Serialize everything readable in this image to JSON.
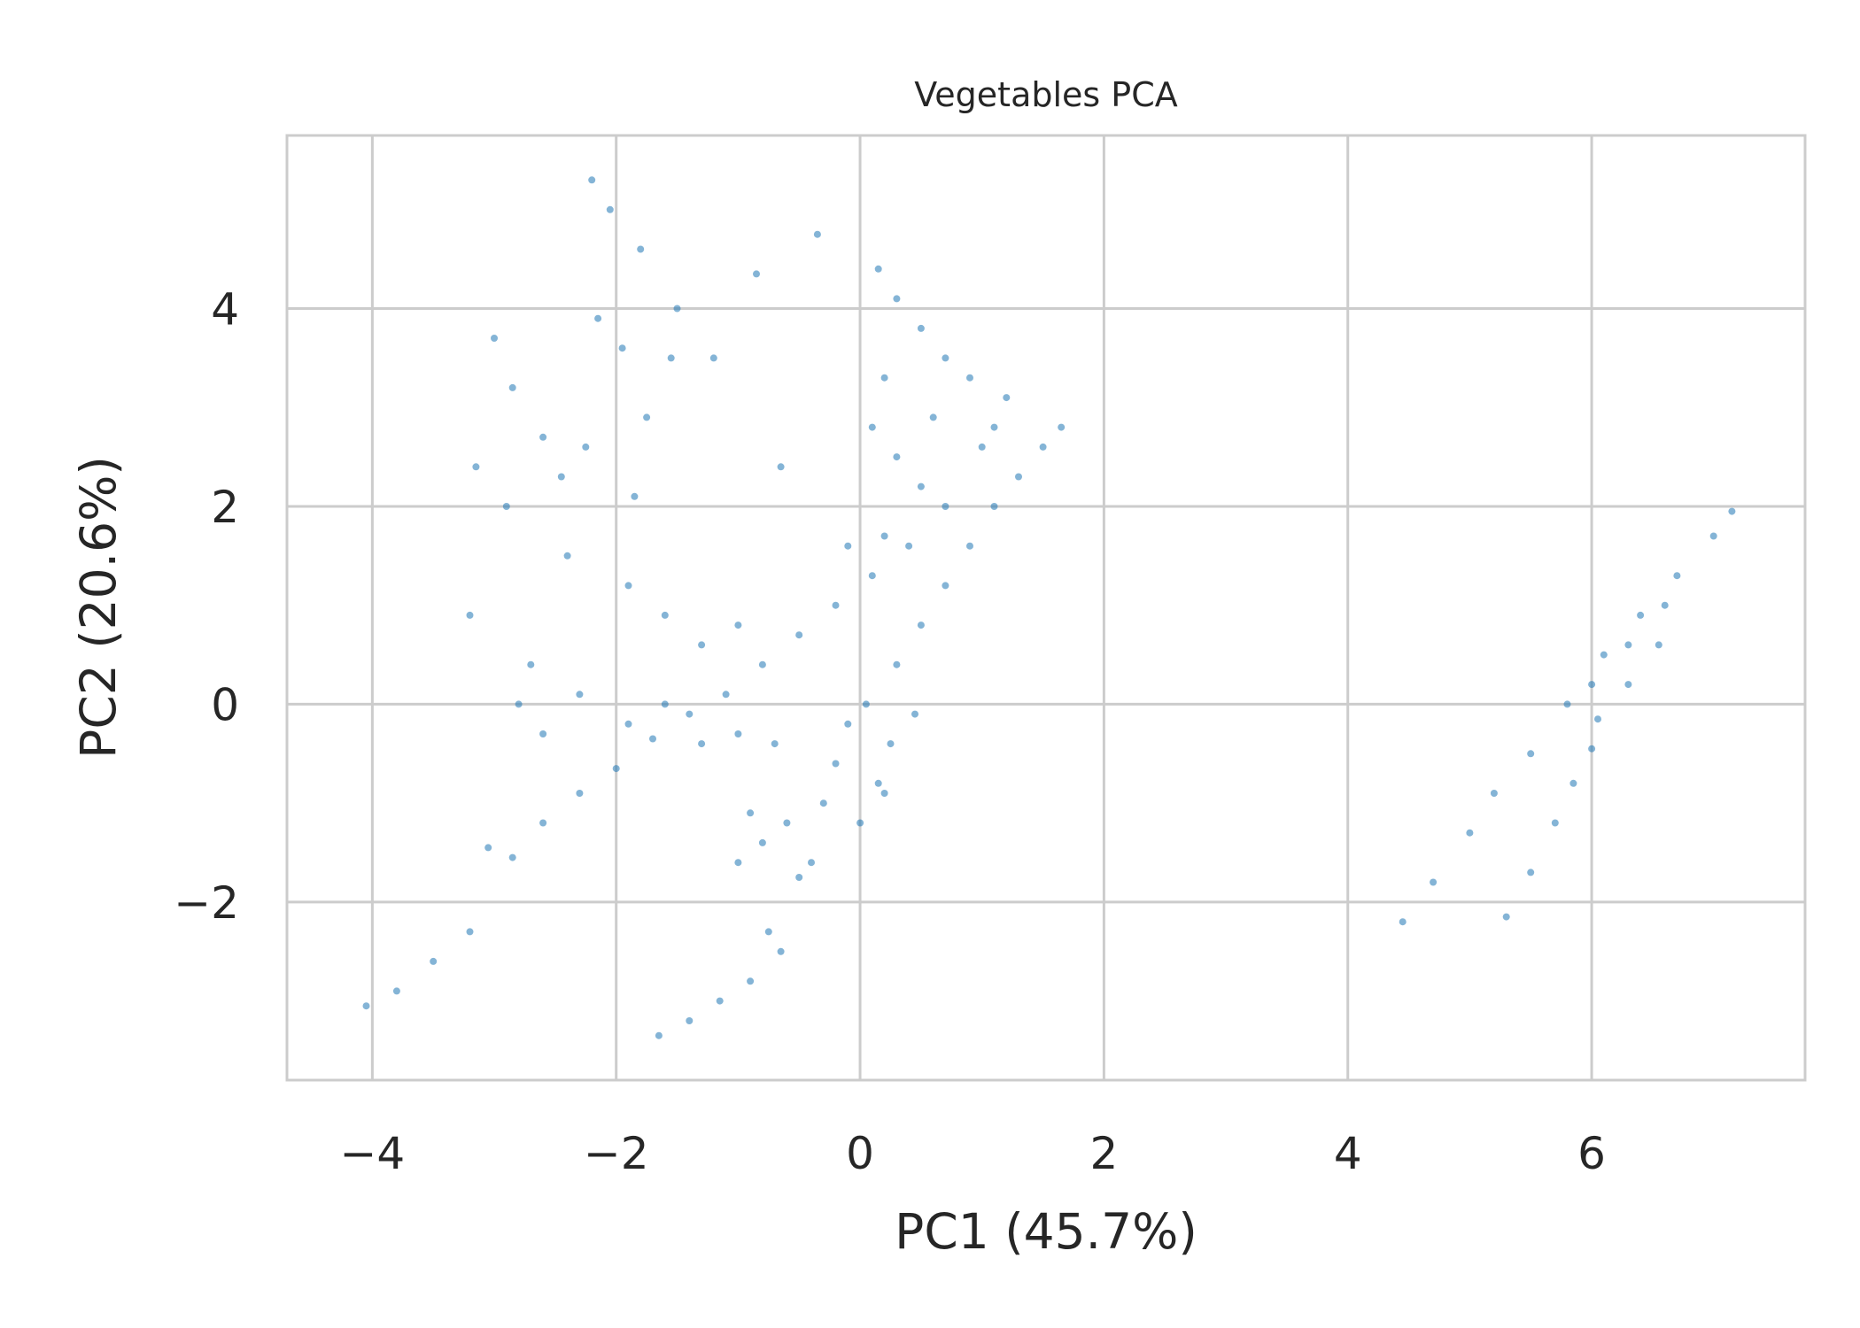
{
  "chart_data": {
    "type": "scatter",
    "title": "Vegetables PCA",
    "xlabel": "PC1 (45.7%)",
    "ylabel": "PC2 (20.6%)",
    "xlim": [
      -4.7,
      7.75
    ],
    "ylim": [
      -3.8,
      5.75
    ],
    "xticks": [
      -4,
      -2,
      0,
      2,
      4,
      6
    ],
    "yticks": [
      -2,
      0,
      2,
      4
    ],
    "xtick_labels": [
      "−4",
      "−2",
      "0",
      "2",
      "4",
      "6"
    ],
    "ytick_labels": [
      "−2",
      "0",
      "2",
      "4"
    ],
    "grid": true,
    "legend": "none",
    "colors": {
      "points": "#1f77b4"
    },
    "points": [
      {
        "x": -4.05,
        "y": -3.05
      },
      {
        "x": -3.8,
        "y": -2.9
      },
      {
        "x": -3.5,
        "y": -2.6
      },
      {
        "x": -3.2,
        "y": -2.3
      },
      {
        "x": -3.05,
        "y": -1.45
      },
      {
        "x": -2.85,
        "y": -1.55
      },
      {
        "x": -2.6,
        "y": -1.2
      },
      {
        "x": -2.3,
        "y": -0.9
      },
      {
        "x": -2.0,
        "y": -0.65
      },
      {
        "x": -1.7,
        "y": -0.35
      },
      {
        "x": -1.4,
        "y": -0.1
      },
      {
        "x": -1.1,
        "y": 0.1
      },
      {
        "x": -0.8,
        "y": 0.4
      },
      {
        "x": -0.5,
        "y": 0.7
      },
      {
        "x": -0.2,
        "y": 1.0
      },
      {
        "x": 0.1,
        "y": 1.3
      },
      {
        "x": 0.4,
        "y": 1.6
      },
      {
        "x": 0.7,
        "y": 2.0
      },
      {
        "x": 1.0,
        "y": 2.6
      },
      {
        "x": 1.2,
        "y": 3.1
      },
      {
        "x": -3.0,
        "y": 3.7
      },
      {
        "x": -2.85,
        "y": 3.2
      },
      {
        "x": -2.6,
        "y": 2.7
      },
      {
        "x": -2.45,
        "y": 2.3
      },
      {
        "x": -2.25,
        "y": 2.6
      },
      {
        "x": -2.15,
        "y": 3.9
      },
      {
        "x": -1.95,
        "y": 3.6
      },
      {
        "x": -1.85,
        "y": 2.1
      },
      {
        "x": -1.75,
        "y": 2.9
      },
      {
        "x": -1.55,
        "y": 3.5
      },
      {
        "x": -2.05,
        "y": 5.0
      },
      {
        "x": -1.8,
        "y": 4.6
      },
      {
        "x": -1.5,
        "y": 4.0
      },
      {
        "x": -1.2,
        "y": 3.5
      },
      {
        "x": -2.2,
        "y": 5.3
      },
      {
        "x": -2.9,
        "y": 2.0
      },
      {
        "x": -3.15,
        "y": 2.4
      },
      {
        "x": -2.4,
        "y": 1.5
      },
      {
        "x": -1.9,
        "y": 1.2
      },
      {
        "x": -1.6,
        "y": 0.9
      },
      {
        "x": -1.3,
        "y": 0.6
      },
      {
        "x": -1.0,
        "y": 0.8
      },
      {
        "x": -2.7,
        "y": 0.4
      },
      {
        "x": -2.8,
        "y": 0.0
      },
      {
        "x": -2.6,
        "y": -0.3
      },
      {
        "x": -2.3,
        "y": 0.1
      },
      {
        "x": -1.9,
        "y": -0.2
      },
      {
        "x": -1.6,
        "y": 0.0
      },
      {
        "x": -1.3,
        "y": -0.4
      },
      {
        "x": -1.0,
        "y": -0.3
      },
      {
        "x": -3.2,
        "y": 0.9
      },
      {
        "x": -0.85,
        "y": 4.35
      },
      {
        "x": 0.15,
        "y": 4.4
      },
      {
        "x": 0.3,
        "y": 4.1
      },
      {
        "x": 0.5,
        "y": 3.8
      },
      {
        "x": 0.7,
        "y": 3.5
      },
      {
        "x": 0.9,
        "y": 3.3
      },
      {
        "x": 0.1,
        "y": 2.8
      },
      {
        "x": 0.3,
        "y": 2.5
      },
      {
        "x": 0.5,
        "y": 2.2
      },
      {
        "x": 0.2,
        "y": 3.3
      },
      {
        "x": 0.6,
        "y": 2.9
      },
      {
        "x": -0.1,
        "y": 1.6
      },
      {
        "x": 0.2,
        "y": 1.7
      },
      {
        "x": -0.35,
        "y": 4.75
      },
      {
        "x": -0.65,
        "y": 2.4
      },
      {
        "x": 1.1,
        "y": 2.8
      },
      {
        "x": 0.05,
        "y": 0.0
      },
      {
        "x": 0.3,
        "y": 0.4
      },
      {
        "x": 0.5,
        "y": 0.8
      },
      {
        "x": 0.7,
        "y": 1.2
      },
      {
        "x": 0.9,
        "y": 1.6
      },
      {
        "x": 1.1,
        "y": 2.0
      },
      {
        "x": 1.3,
        "y": 2.3
      },
      {
        "x": 1.5,
        "y": 2.6
      },
      {
        "x": 1.65,
        "y": 2.8
      },
      {
        "x": 0.25,
        "y": -0.4
      },
      {
        "x": 0.45,
        "y": -0.1
      },
      {
        "x": -1.0,
        "y": -1.6
      },
      {
        "x": -0.8,
        "y": -1.4
      },
      {
        "x": -0.6,
        "y": -1.2
      },
      {
        "x": -0.4,
        "y": -1.6
      },
      {
        "x": -0.3,
        "y": -1.0
      },
      {
        "x": -0.2,
        "y": -0.6
      },
      {
        "x": -0.1,
        "y": -0.2
      },
      {
        "x": 0.0,
        "y": -1.2
      },
      {
        "x": 0.15,
        "y": -0.8
      },
      {
        "x": -0.7,
        "y": -0.4
      },
      {
        "x": -0.5,
        "y": -1.75
      },
      {
        "x": -0.9,
        "y": -1.1
      },
      {
        "x": 0.2,
        "y": -0.9
      },
      {
        "x": -1.65,
        "y": -3.35
      },
      {
        "x": -1.4,
        "y": -3.2
      },
      {
        "x": -1.15,
        "y": -3.0
      },
      {
        "x": -0.9,
        "y": -2.8
      },
      {
        "x": -0.65,
        "y": -2.5
      },
      {
        "x": -0.75,
        "y": -2.3
      },
      {
        "x": 4.45,
        "y": -2.2
      },
      {
        "x": 4.7,
        "y": -1.8
      },
      {
        "x": 5.0,
        "y": -1.3
      },
      {
        "x": 5.2,
        "y": -0.9
      },
      {
        "x": 5.5,
        "y": -0.5
      },
      {
        "x": 5.8,
        "y": 0.0
      },
      {
        "x": 6.1,
        "y": 0.5
      },
      {
        "x": 6.4,
        "y": 0.9
      },
      {
        "x": 6.7,
        "y": 1.3
      },
      {
        "x": 7.0,
        "y": 1.7
      },
      {
        "x": 7.15,
        "y": 1.95
      },
      {
        "x": 6.0,
        "y": 0.2
      },
      {
        "x": 6.3,
        "y": 0.6
      },
      {
        "x": 6.6,
        "y": 1.0
      },
      {
        "x": 6.05,
        "y": -0.15
      },
      {
        "x": 6.3,
        "y": 0.2
      },
      {
        "x": 6.55,
        "y": 0.6
      },
      {
        "x": 5.3,
        "y": -2.15
      },
      {
        "x": 5.5,
        "y": -1.7
      },
      {
        "x": 5.7,
        "y": -1.2
      },
      {
        "x": 5.85,
        "y": -0.8
      },
      {
        "x": 6.0,
        "y": -0.45
      }
    ]
  }
}
